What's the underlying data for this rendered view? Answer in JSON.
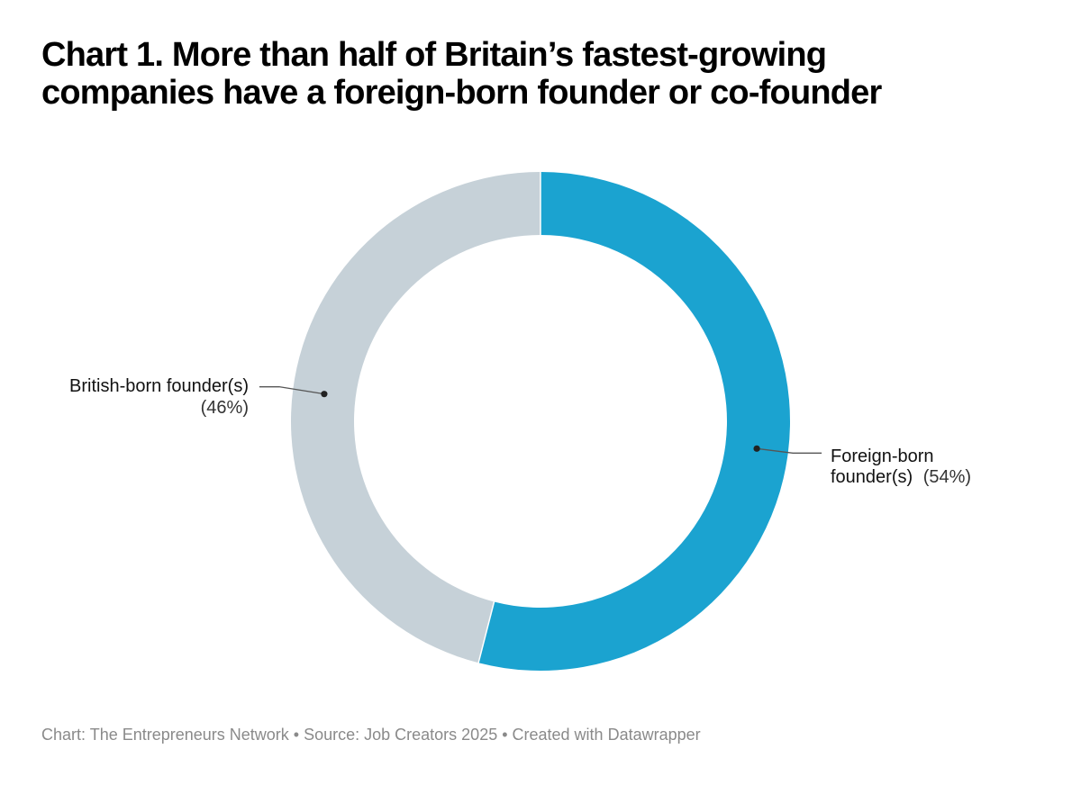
{
  "title_lines": [
    "Chart 1. More than half of Britain’s fastest-growing",
    "companies have a foreign-born founder or co-founder"
  ],
  "chart_data": {
    "type": "pie",
    "variant": "donut",
    "title": "Chart 1. More than half of Britain’s fastest-growing companies have a foreign-born founder or co-founder",
    "categories": [
      "Foreign-born founder(s)",
      "British-born founder(s)"
    ],
    "values": [
      54,
      46
    ],
    "unit": "%",
    "slices": [
      {
        "label_lines": [
          "Foreign-born",
          "founder(s)"
        ],
        "pct_label": "(54%)",
        "value": 54,
        "color": "#1ba3d0"
      },
      {
        "label_lines": [
          "British-born founder(s)"
        ],
        "pct_label": "(46%)",
        "value": 46,
        "color": "#c6d1d8"
      }
    ]
  },
  "footer": {
    "text": "Chart: The Entrepreneurs Network • Source: Job Creators 2025 • Created with Datawrapper"
  }
}
